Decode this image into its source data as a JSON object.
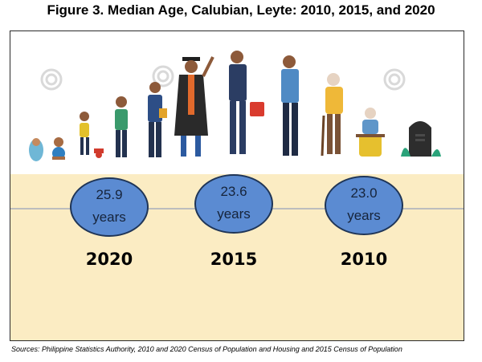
{
  "title": "Figure 3. Median Age, Calubian, Leyte: 2010, 2015, and 2020",
  "chart_data": {
    "type": "table",
    "unit": "years",
    "entries": [
      {
        "year": "2020",
        "median_age": 25.9,
        "value_label": "25.9",
        "unit_label": "years"
      },
      {
        "year": "2015",
        "median_age": 23.6,
        "value_label": "23.6",
        "unit_label": "years"
      },
      {
        "year": "2010",
        "median_age": 23.0,
        "value_label": "23.0",
        "unit_label": "years"
      }
    ]
  },
  "illustration": {
    "icons": [
      "baby-icon",
      "crawling-baby-icon",
      "toddler-icon",
      "child-icon",
      "teen-icon",
      "graduate-icon",
      "businessman-icon",
      "adult-man-icon",
      "elderly-with-cane-icon",
      "elderly-seated-icon",
      "gravestone-icon"
    ]
  },
  "colors": {
    "bubble_fill": "#5b8bd2",
    "bubble_border": "#1f3557",
    "band": "#fbecc3"
  },
  "source": "Sources: Philippine Statistics Authority, 2010 and 2020 Census of Population and Housing and 2015 Census of Population"
}
